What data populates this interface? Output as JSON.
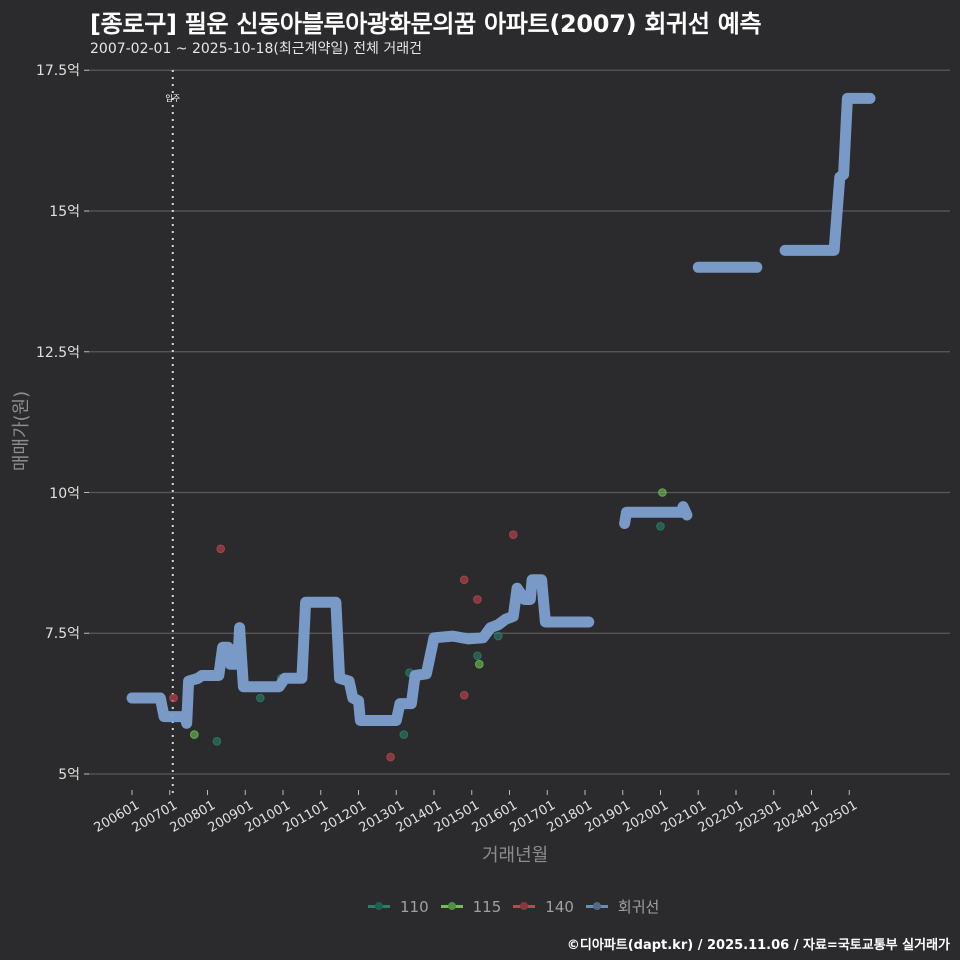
{
  "header": {
    "title": "[종로구] 필운 신동아블루아광화문의꿈 아파트(2007) 회귀선 예측",
    "subtitle": "2007-02-01 ~ 2025-10-18(최근계약일) 전체 거래건"
  },
  "caption": "©디아파트(dapt.kr) / 2025.11.06 / 자료=국토교통부 실거래가",
  "chart_data": {
    "type": "line",
    "title": "[종로구] 필운 신동아블루아광화문의꿈 아파트(2007) 회귀선 예측",
    "subtitle": "2007-02-01 ~ 2025-10-18(최근계약일) 전체 거래건",
    "xlabel": "거래년월",
    "ylabel": "매매가(원)",
    "ylim": [
      4.8,
      17.5
    ],
    "y_ticks": [
      "5억",
      "7.5억",
      "10억",
      "12.5억",
      "15억",
      "17.5억"
    ],
    "y_tick_values": [
      5,
      7.5,
      10,
      12.5,
      15,
      17.5
    ],
    "x_ticks": [
      "200601",
      "200701",
      "200801",
      "200901",
      "201001",
      "201101",
      "201201",
      "201301",
      "201401",
      "201501",
      "201601",
      "201701",
      "201801",
      "201901",
      "202001",
      "202101",
      "202201",
      "202301",
      "202401",
      "202501"
    ],
    "grid": true,
    "legend_position": "bottom",
    "annotations": [
      {
        "label": "입주",
        "x": "200702",
        "type": "vertical-dotted-line"
      }
    ],
    "legend": [
      "110",
      "115",
      "140",
      "회귀선"
    ],
    "colors": {
      "110": "#2a7f6a",
      "115": "#6fbf55",
      "140": "#c0454f",
      "회귀선": "#7d9fcf"
    },
    "series": [
      {
        "name": "회귀선",
        "unit": "억",
        "points": [
          [
            2006.0,
            6.35
          ],
          [
            2006.6,
            6.35
          ],
          [
            2006.75,
            6.35
          ],
          [
            2006.85,
            6.02
          ],
          [
            2007.4,
            6.02
          ],
          [
            2007.45,
            5.9
          ],
          [
            2007.5,
            6.65
          ],
          [
            2007.75,
            6.7
          ],
          [
            2007.85,
            6.75
          ],
          [
            2008.3,
            6.75
          ],
          [
            2008.4,
            7.25
          ],
          [
            2008.55,
            7.25
          ],
          [
            2008.6,
            6.95
          ],
          [
            2008.8,
            6.95
          ],
          [
            2008.85,
            7.6
          ],
          [
            2008.95,
            6.55
          ],
          [
            2009.9,
            6.55
          ],
          [
            2010.05,
            6.7
          ],
          [
            2010.5,
            6.7
          ],
          [
            2010.6,
            8.05
          ],
          [
            2011.4,
            8.05
          ],
          [
            2011.5,
            6.7
          ],
          [
            2011.75,
            6.65
          ],
          [
            2011.85,
            6.35
          ],
          [
            2012.0,
            6.3
          ],
          [
            2012.05,
            5.95
          ],
          [
            2013.0,
            5.95
          ],
          [
            2013.1,
            6.25
          ],
          [
            2013.4,
            6.25
          ],
          [
            2013.5,
            6.75
          ],
          [
            2013.8,
            6.78
          ],
          [
            2014.0,
            7.42
          ],
          [
            2014.5,
            7.45
          ],
          [
            2014.9,
            7.4
          ],
          [
            2015.3,
            7.42
          ],
          [
            2015.5,
            7.6
          ],
          [
            2015.7,
            7.65
          ],
          [
            2015.9,
            7.75
          ],
          [
            2016.1,
            7.8
          ],
          [
            2016.2,
            8.3
          ],
          [
            2016.4,
            8.1
          ],
          [
            2016.55,
            8.1
          ],
          [
            2016.6,
            8.45
          ],
          [
            2016.85,
            8.45
          ],
          [
            2016.95,
            7.7
          ],
          [
            2018.1,
            7.7
          ]
        ],
        "segments_note": "line has gaps at 2018-2019, 2020-2021, 2022-2023",
        "points_2": [
          [
            2019.05,
            9.45
          ],
          [
            2019.1,
            9.65
          ],
          [
            2020.55,
            9.65
          ],
          [
            2020.6,
            9.75
          ],
          [
            2020.7,
            9.6
          ]
        ],
        "points_3": [
          [
            2021.0,
            14.0
          ],
          [
            2022.55,
            14.0
          ]
        ],
        "points_4": [
          [
            2023.3,
            14.3
          ],
          [
            2024.6,
            14.3
          ],
          [
            2024.75,
            15.6
          ],
          [
            2024.85,
            15.65
          ],
          [
            2024.95,
            17.0
          ],
          [
            2025.55,
            17.0
          ]
        ]
      },
      {
        "name": "110",
        "unit": "억",
        "points": [
          [
            2008.25,
            5.58
          ],
          [
            2009.4,
            6.35
          ],
          [
            2009.95,
            6.7
          ],
          [
            2013.2,
            5.7
          ],
          [
            2013.35,
            6.8
          ],
          [
            2015.15,
            7.1
          ],
          [
            2015.7,
            7.45
          ],
          [
            2020.0,
            9.4
          ]
        ]
      },
      {
        "name": "115",
        "unit": "억",
        "points": [
          [
            2007.65,
            5.7
          ],
          [
            2015.2,
            6.95
          ],
          [
            2020.05,
            10.0
          ]
        ]
      },
      {
        "name": "140",
        "unit": "억",
        "points": [
          [
            2007.1,
            6.35
          ],
          [
            2008.35,
            9.0
          ],
          [
            2012.85,
            5.3
          ],
          [
            2014.8,
            6.4
          ],
          [
            2014.8,
            8.45
          ],
          [
            2015.15,
            8.1
          ],
          [
            2016.1,
            9.25
          ]
        ]
      }
    ]
  }
}
